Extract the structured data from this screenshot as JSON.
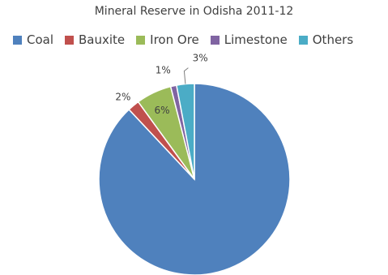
{
  "chart_data": {
    "type": "pie",
    "title": "Mineral Reserve in Odisha 2011-12",
    "legend_position": "top",
    "slices": [
      {
        "name": "Coal",
        "value": 88,
        "label": "",
        "color": "#4F81BD"
      },
      {
        "name": "Bauxite",
        "value": 2,
        "label": "2%",
        "color": "#C0504D"
      },
      {
        "name": "Iron Ore",
        "value": 6,
        "label": "6%",
        "color": "#9BBB59"
      },
      {
        "name": "Limestone",
        "value": 1,
        "label": "1%",
        "color": "#8064A2"
      },
      {
        "name": "Others",
        "value": 3,
        "label": "3%",
        "color": "#4BACC6"
      }
    ]
  }
}
